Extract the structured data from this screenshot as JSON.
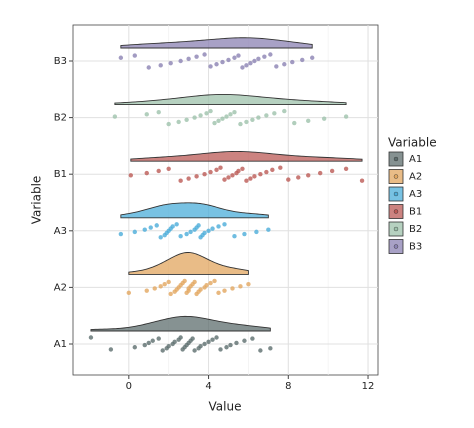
{
  "chart_data": {
    "type": "raincloud",
    "x_label": "Value",
    "y_label": "Variable",
    "legend_title": "Variable",
    "xlim": [
      -2.8,
      12.5
    ],
    "xticks": [
      0,
      4,
      8,
      12
    ],
    "grid": true,
    "legend": "right",
    "series": [
      {
        "name": "A1",
        "color": "#5d6e6e",
        "values": [
          -1.9,
          -0.9,
          0.3,
          0.8,
          1.0,
          1.2,
          1.5,
          1.7,
          1.9,
          2.0,
          2.2,
          2.3,
          2.5,
          2.6,
          2.7,
          2.8,
          2.9,
          3.0,
          3.1,
          3.2,
          3.3,
          3.5,
          3.6,
          3.8,
          4.0,
          4.2,
          4.4,
          4.6,
          4.9,
          5.1,
          5.4,
          5.8,
          6.2,
          6.6,
          7.1
        ]
      },
      {
        "name": "A2",
        "color": "#e2a65f",
        "values": [
          0.0,
          0.9,
          1.3,
          1.6,
          1.8,
          2.0,
          2.1,
          2.3,
          2.4,
          2.5,
          2.6,
          2.7,
          2.8,
          2.9,
          3.0,
          3.0,
          3.1,
          3.2,
          3.3,
          3.4,
          3.5,
          3.6,
          3.8,
          3.9,
          4.1,
          4.3,
          4.5,
          4.8,
          5.2,
          5.6,
          6.0
        ]
      },
      {
        "name": "A3",
        "color": "#4badda",
        "values": [
          -0.4,
          0.3,
          0.8,
          1.1,
          1.4,
          1.6,
          1.8,
          1.9,
          2.0,
          2.1,
          2.2,
          2.4,
          2.6,
          2.9,
          3.1,
          3.3,
          3.4,
          3.5,
          3.6,
          3.7,
          3.8,
          4.0,
          4.2,
          4.5,
          4.8,
          5.3,
          5.8,
          6.4,
          7.0
        ]
      },
      {
        "name": "B1",
        "color": "#bb5a55",
        "values": [
          0.1,
          0.9,
          1.5,
          2.0,
          2.6,
          3.0,
          3.4,
          3.8,
          4.1,
          4.4,
          4.6,
          4.8,
          5.0,
          5.2,
          5.4,
          5.5,
          5.7,
          5.9,
          6.1,
          6.3,
          6.6,
          6.9,
          7.2,
          7.6,
          8.0,
          8.5,
          9.0,
          9.6,
          10.2,
          10.9,
          11.7
        ]
      },
      {
        "name": "B2",
        "color": "#9dc2ab",
        "values": [
          -0.7,
          0.9,
          1.5,
          2.0,
          2.5,
          2.9,
          3.3,
          3.6,
          3.9,
          4.1,
          4.3,
          4.5,
          4.7,
          4.9,
          5.1,
          5.3,
          5.6,
          5.9,
          6.2,
          6.5,
          6.9,
          7.3,
          7.8,
          8.3,
          9.0,
          9.8,
          10.9
        ]
      },
      {
        "name": "B3",
        "color": "#8b82b3",
        "values": [
          -0.4,
          0.3,
          1.0,
          1.6,
          2.1,
          2.6,
          3.0,
          3.4,
          3.8,
          4.1,
          4.4,
          4.7,
          5.0,
          5.3,
          5.5,
          5.7,
          5.9,
          6.1,
          6.3,
          6.5,
          6.8,
          7.1,
          7.4,
          7.8,
          8.2,
          8.7,
          9.2
        ]
      }
    ]
  }
}
